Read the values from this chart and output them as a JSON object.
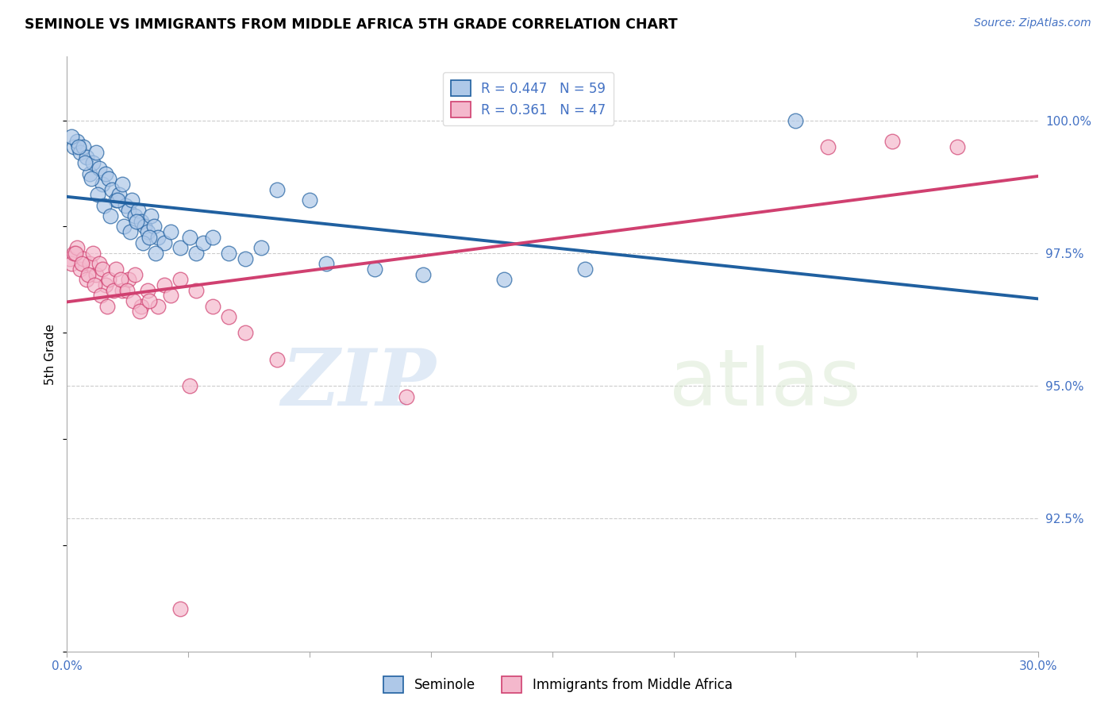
{
  "title": "SEMINOLE VS IMMIGRANTS FROM MIDDLE AFRICA 5TH GRADE CORRELATION CHART",
  "source": "Source: ZipAtlas.com",
  "ylabel": "5th Grade",
  "yaxis_values": [
    92.5,
    95.0,
    97.5,
    100.0
  ],
  "xmin": 0.0,
  "xmax": 30.0,
  "ymin": 90.0,
  "ymax": 101.2,
  "legend_blue": "R = 0.447   N = 59",
  "legend_pink": "R = 0.361   N = 47",
  "legend_label_blue": "Seminole",
  "legend_label_pink": "Immigrants from Middle Africa",
  "blue_color": "#aec8e8",
  "pink_color": "#f4b8cc",
  "blue_line_color": "#2060a0",
  "pink_line_color": "#d04070",
  "watermark_zip": "ZIP",
  "watermark_atlas": "atlas",
  "blue_scatter_x": [
    0.2,
    0.3,
    0.4,
    0.5,
    0.6,
    0.7,
    0.8,
    0.9,
    1.0,
    1.1,
    1.2,
    1.3,
    1.4,
    1.5,
    1.6,
    1.7,
    1.8,
    1.9,
    2.0,
    2.1,
    2.2,
    2.3,
    2.4,
    2.5,
    2.6,
    2.7,
    2.8,
    3.0,
    3.2,
    3.5,
    3.8,
    4.0,
    4.2,
    4.5,
    5.0,
    5.5,
    6.0,
    6.5,
    7.5,
    8.0,
    9.5,
    11.0,
    13.5,
    16.0,
    0.15,
    0.35,
    0.55,
    0.75,
    0.95,
    1.15,
    1.35,
    1.55,
    1.75,
    1.95,
    2.15,
    2.35,
    2.55,
    2.75,
    22.5
  ],
  "blue_scatter_y": [
    99.5,
    99.6,
    99.4,
    99.5,
    99.3,
    99.0,
    99.2,
    99.4,
    99.1,
    98.8,
    99.0,
    98.9,
    98.7,
    98.5,
    98.6,
    98.8,
    98.4,
    98.3,
    98.5,
    98.2,
    98.3,
    98.1,
    98.0,
    97.9,
    98.2,
    98.0,
    97.8,
    97.7,
    97.9,
    97.6,
    97.8,
    97.5,
    97.7,
    97.8,
    97.5,
    97.4,
    97.6,
    98.7,
    98.5,
    97.3,
    97.2,
    97.1,
    97.0,
    97.2,
    99.7,
    99.5,
    99.2,
    98.9,
    98.6,
    98.4,
    98.2,
    98.5,
    98.0,
    97.9,
    98.1,
    97.7,
    97.8,
    97.5,
    100.0
  ],
  "pink_scatter_x": [
    0.1,
    0.15,
    0.2,
    0.3,
    0.4,
    0.5,
    0.6,
    0.7,
    0.8,
    0.9,
    1.0,
    1.1,
    1.2,
    1.3,
    1.5,
    1.7,
    1.9,
    2.1,
    2.3,
    2.5,
    2.8,
    3.0,
    3.2,
    3.5,
    4.0,
    4.5,
    5.0,
    5.5,
    6.5,
    0.25,
    0.45,
    0.65,
    0.85,
    1.05,
    1.25,
    1.45,
    1.65,
    1.85,
    2.05,
    2.25,
    2.55,
    3.8,
    10.5,
    23.5,
    25.5,
    27.5,
    3.5
  ],
  "pink_scatter_y": [
    97.4,
    97.3,
    97.5,
    97.6,
    97.2,
    97.4,
    97.0,
    97.3,
    97.5,
    97.1,
    97.3,
    97.2,
    96.9,
    97.0,
    97.2,
    96.8,
    97.0,
    97.1,
    96.5,
    96.8,
    96.5,
    96.9,
    96.7,
    97.0,
    96.8,
    96.5,
    96.3,
    96.0,
    95.5,
    97.5,
    97.3,
    97.1,
    96.9,
    96.7,
    96.5,
    96.8,
    97.0,
    96.8,
    96.6,
    96.4,
    96.6,
    95.0,
    94.8,
    99.5,
    99.6,
    99.5,
    90.8
  ]
}
